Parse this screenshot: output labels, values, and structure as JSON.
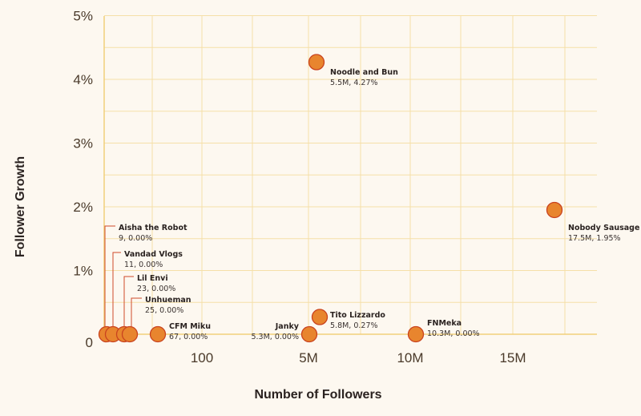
{
  "chart_data": {
    "type": "scatter",
    "title": "",
    "xlabel": "Number of Followers",
    "ylabel": "Follower Growth",
    "x_ticks": [
      {
        "key": "100",
        "label": "100"
      },
      {
        "key": "5M",
        "label": "5M"
      },
      {
        "key": "10M",
        "label": "10M"
      },
      {
        "key": "15M",
        "label": "15M"
      }
    ],
    "y_ticks": [
      {
        "value": 0,
        "label": "0"
      },
      {
        "value": 1,
        "label": "1%"
      },
      {
        "value": 2,
        "label": "2%"
      },
      {
        "value": 3,
        "label": "3%"
      },
      {
        "value": 4,
        "label": "4%"
      },
      {
        "value": 5,
        "label": "5%"
      }
    ],
    "ylim": [
      0,
      5.2
    ],
    "grid": true,
    "colors": {
      "point_fill": "#e8852e",
      "point_stroke": "#c9431f",
      "grid": "#f5dfa8",
      "leader": "#d04a2a",
      "background": "#fdf8f0"
    },
    "points": [
      {
        "name": "Aisha the Robot",
        "followers": 9,
        "growth": 0.0,
        "value_label": "9, 0.00%"
      },
      {
        "name": "Vandad Vlogs",
        "followers": 11,
        "growth": 0.0,
        "value_label": "11, 0.00%"
      },
      {
        "name": "Lil Envi",
        "followers": 23,
        "growth": 0.0,
        "value_label": "23, 0.00%"
      },
      {
        "name": "Unhueman",
        "followers": 25,
        "growth": 0.0,
        "value_label": "25, 0.00%"
      },
      {
        "name": "CFM Miku",
        "followers": 67,
        "growth": 0.0,
        "value_label": "67, 0.00%"
      },
      {
        "name": "Janky",
        "followers": 5300000,
        "growth": 0.0,
        "value_label": "5.3M, 0.00%"
      },
      {
        "name": "Tito Lizzardo",
        "followers": 5800000,
        "growth": 0.27,
        "value_label": "5.8M, 0.27%"
      },
      {
        "name": "Noodle and Bun",
        "followers": 5500000,
        "growth": 4.27,
        "value_label": "5.5M, 4.27%"
      },
      {
        "name": "FNMeka",
        "followers": 10300000,
        "growth": 0.0,
        "value_label": "10.3M, 0.00%"
      },
      {
        "name": "Nobody Sausage",
        "followers": 17500000,
        "growth": 1.95,
        "value_label": "17.5M, 1.95%"
      }
    ]
  }
}
